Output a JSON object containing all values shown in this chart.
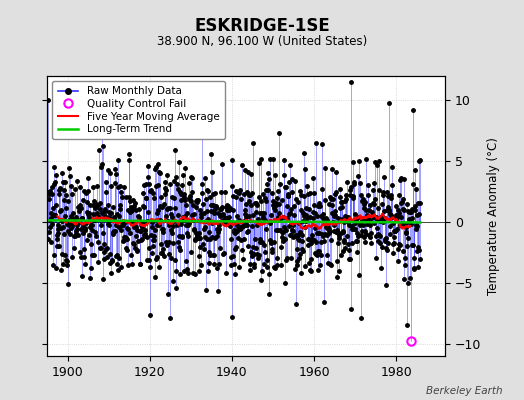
{
  "title": "ESKRIDGE-1SE",
  "subtitle": "38.900 N, 96.100 W (United States)",
  "ylabel": "Temperature Anomaly (°C)",
  "credit": "Berkeley Earth",
  "xlim": [
    1895,
    1992
  ],
  "ylim": [
    -11,
    12
  ],
  "yticks": [
    -10,
    -5,
    0,
    5,
    10
  ],
  "xticks": [
    1900,
    1920,
    1940,
    1960,
    1980
  ],
  "bg_color": "#e0e0e0",
  "plot_bg_color": "#ffffff",
  "raw_line_color": "#3333ff",
  "raw_marker_color": "#000000",
  "raw_marker_size": 2.5,
  "moving_avg_color": "#ff0000",
  "moving_avg_lw": 1.5,
  "trend_color": "#00cc00",
  "trend_lw": 1.8,
  "qc_fail_color": "#ff00ff",
  "seed": 137,
  "n_years": 91,
  "start_year": 1895,
  "noise_std": 2.2,
  "spike_prob": 0.08,
  "spike_scale": 3.5,
  "trend_slope": -0.002,
  "trend_intercept": 0.1
}
